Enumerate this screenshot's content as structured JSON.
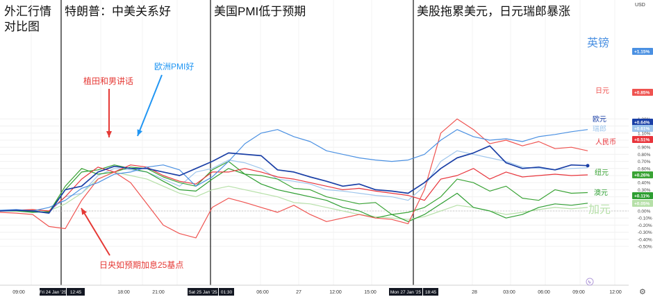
{
  "chart_data": {
    "type": "line",
    "title": "外汇行情对比图",
    "title_lines": [
      "外汇行情",
      "对比图"
    ],
    "section_headers": [
      "特朗普：中美关系好",
      "美国PMI低于预期",
      "美股拖累美元，日元瑞郎暴涨"
    ],
    "annotations": [
      {
        "text": "植田和男讲话",
        "color": "#e53935"
      },
      {
        "text": "欧洲PMI好",
        "color": "#2196f3"
      },
      {
        "text": "日央如预期加息25基点",
        "color": "#e53935"
      }
    ],
    "y_axis": {
      "unit": "USD",
      "range": [
        -0.5,
        1.4
      ],
      "ticks": [
        1.3,
        1.2,
        1.1,
        1.0,
        0.9,
        0.8,
        0.7,
        0.6,
        0.5,
        0.4,
        0.3,
        0.2,
        0.1,
        0.0,
        -0.1,
        -0.2,
        -0.3,
        -0.4,
        -0.5
      ],
      "tick_labels": [
        "1.30%",
        "1.20%",
        "1.10%",
        "1.00%",
        "0.90%",
        "0.80%",
        "0.70%",
        "0.60%",
        "0.50%",
        "0.40%",
        "0.30%",
        "0.20%",
        "0.10%",
        "0.00%",
        "-0.10%",
        "-0.20%",
        "-0.30%",
        "-0.40%",
        "-0.50%"
      ]
    },
    "x_axis": {
      "tick_labels": [
        "09:00",
        "18:00",
        "21:00",
        "06:00",
        "27",
        "12:00",
        "15:00",
        "28",
        "03:00",
        "06:00",
        "09:00",
        "12:00"
      ],
      "date_boxes": [
        "Fri 24 Jan '25",
        "12:45",
        "Sat 25 Jan '25",
        "01:30",
        "Mon 27 Jan '25",
        "18:45"
      ]
    },
    "grid": true,
    "legend": "right, labels at line ends",
    "series": [
      {
        "name": "英镑",
        "color": "#4a90e2",
        "final": 1.15,
        "badge": "+1.15%",
        "values": [
          0.01,
          0.02,
          0.0,
          0.05,
          0.15,
          0.32,
          0.4,
          0.52,
          0.55,
          0.62,
          0.65,
          0.58,
          0.35,
          0.48,
          0.7,
          0.95,
          1.1,
          1.15,
          1.05,
          0.98,
          0.85,
          0.8,
          0.75,
          0.72,
          0.7,
          0.72,
          0.8,
          1.0,
          1.15,
          1.05,
          1.0,
          1.02,
          0.98,
          1.05,
          1.08,
          1.12,
          1.15
        ]
      },
      {
        "name": "日元",
        "color": "#ef5350",
        "final": 0.85,
        "badge": "+0.85%",
        "values": [
          -0.02,
          -0.03,
          -0.05,
          -0.22,
          -0.25,
          0.15,
          0.45,
          0.55,
          0.4,
          0.1,
          -0.2,
          -0.32,
          -0.38,
          0.05,
          0.18,
          0.12,
          0.05,
          -0.02,
          0.08,
          -0.05,
          -0.15,
          -0.1,
          -0.05,
          -0.1,
          -0.12,
          -0.18,
          0.3,
          1.1,
          1.3,
          1.15,
          0.95,
          1.0,
          0.92,
          0.98,
          0.88,
          0.9,
          0.85
        ]
      },
      {
        "name": "欧元",
        "color": "#1a3fa6",
        "final": 0.64,
        "badge": "+0.64%",
        "values": [
          0.0,
          0.01,
          0.0,
          -0.03,
          0.3,
          0.35,
          0.55,
          0.63,
          0.6,
          0.6,
          0.55,
          0.5,
          0.6,
          0.7,
          0.82,
          0.8,
          0.78,
          0.58,
          0.55,
          0.48,
          0.42,
          0.35,
          0.38,
          0.3,
          0.28,
          0.25,
          0.4,
          0.6,
          0.75,
          0.82,
          0.92,
          0.68,
          0.6,
          0.62,
          0.58,
          0.65,
          0.64
        ]
      },
      {
        "name": "瑞郎",
        "color": "#9ec5ec",
        "final": 0.61,
        "badge": "+0.61%",
        "values": [
          0.0,
          0.01,
          -0.01,
          -0.02,
          0.2,
          0.25,
          0.5,
          0.6,
          0.58,
          0.55,
          0.45,
          0.35,
          0.55,
          0.6,
          0.72,
          0.68,
          0.6,
          0.45,
          0.42,
          0.38,
          0.3,
          0.28,
          0.25,
          0.22,
          0.2,
          0.15,
          0.35,
          0.7,
          0.85,
          0.8,
          0.75,
          0.7,
          0.62,
          0.6,
          0.58,
          0.6,
          0.61
        ]
      },
      {
        "name": "人民币",
        "color": "#e8343b",
        "final": 0.51,
        "badge": "+0.51%",
        "values": [
          0.0,
          0.01,
          0.02,
          0.0,
          0.2,
          0.45,
          0.62,
          0.55,
          0.65,
          0.62,
          0.5,
          0.42,
          0.38,
          0.55,
          0.55,
          0.6,
          0.55,
          0.48,
          0.45,
          0.4,
          0.35,
          0.3,
          0.32,
          0.28,
          0.25,
          0.22,
          0.15,
          0.45,
          0.5,
          0.6,
          0.45,
          0.55,
          0.48,
          0.5,
          0.52,
          0.5,
          0.51
        ]
      },
      {
        "name": "纽元",
        "color": "#3aa335",
        "final": 0.26,
        "badge": "+0.26%",
        "values": [
          0.0,
          0.01,
          -0.01,
          -0.02,
          0.35,
          0.6,
          0.52,
          0.55,
          0.62,
          0.6,
          0.48,
          0.4,
          0.35,
          0.58,
          0.7,
          0.52,
          0.5,
          0.45,
          0.32,
          0.3,
          0.2,
          0.15,
          0.1,
          0.12,
          -0.05,
          -0.02,
          0.05,
          0.2,
          0.45,
          0.4,
          0.28,
          0.35,
          0.18,
          0.15,
          0.3,
          0.25,
          0.26
        ]
      },
      {
        "name": "澳元",
        "color": "#2e9e32",
        "final": 0.11,
        "badge": "+0.11%",
        "values": [
          0.0,
          0.0,
          -0.02,
          -0.01,
          0.3,
          0.55,
          0.58,
          0.65,
          0.6,
          0.55,
          0.42,
          0.3,
          0.28,
          0.45,
          0.6,
          0.52,
          0.38,
          0.3,
          0.25,
          0.2,
          0.15,
          0.05,
          0.0,
          -0.1,
          -0.05,
          -0.15,
          -0.05,
          0.1,
          0.25,
          0.05,
          0.0,
          -0.1,
          -0.05,
          0.05,
          0.1,
          0.08,
          0.11
        ]
      },
      {
        "name": "加元",
        "color": "#b6e0a8",
        "final": 0.05,
        "badge": "+0.05%",
        "values": [
          0.0,
          0.0,
          0.01,
          0.0,
          0.1,
          0.25,
          0.45,
          0.55,
          0.5,
          0.45,
          0.35,
          0.25,
          0.2,
          0.3,
          0.35,
          0.3,
          0.25,
          0.2,
          0.12,
          0.1,
          0.05,
          0.0,
          -0.05,
          -0.08,
          -0.1,
          -0.12,
          -0.08,
          0.0,
          0.08,
          0.05,
          0.0,
          -0.05,
          -0.02,
          0.02,
          0.05,
          0.03,
          0.05
        ]
      }
    ]
  }
}
